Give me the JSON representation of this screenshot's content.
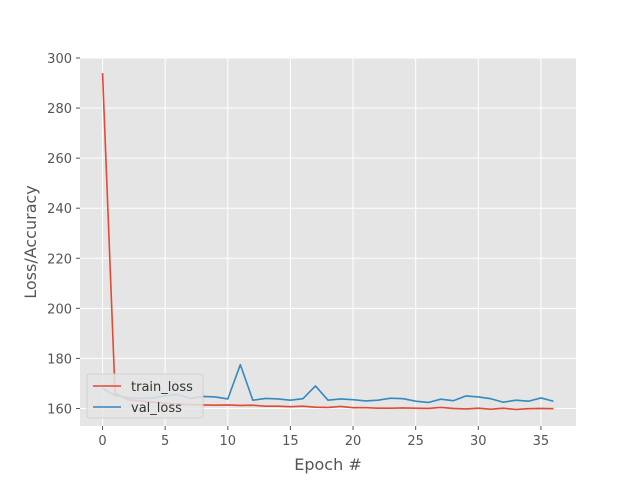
{
  "chart_data": {
    "type": "line",
    "title": "",
    "xlabel": "Epoch #",
    "ylabel": "Loss/Accuracy",
    "xlim": [
      -1.8,
      37.8
    ],
    "ylim": [
      153,
      300
    ],
    "xticks": [
      0,
      5,
      10,
      15,
      20,
      25,
      30,
      35
    ],
    "yticks": [
      160,
      180,
      200,
      220,
      240,
      260,
      280,
      300
    ],
    "grid": true,
    "legend_position": "lower-left",
    "x": [
      0,
      1,
      2,
      3,
      4,
      5,
      6,
      7,
      8,
      9,
      10,
      11,
      12,
      13,
      14,
      15,
      16,
      17,
      18,
      19,
      20,
      21,
      22,
      23,
      24,
      25,
      26,
      27,
      28,
      29,
      30,
      31,
      32,
      33,
      34,
      35,
      36
    ],
    "series": [
      {
        "name": "train_loss",
        "color": "#E24A33",
        "values": [
          294,
          166,
          163.5,
          163,
          162.5,
          162,
          161.8,
          161.5,
          161.4,
          161.3,
          161.4,
          161.2,
          161.3,
          160.9,
          160.9,
          160.7,
          160.9,
          160.5,
          160.4,
          160.8,
          160.3,
          160.3,
          160.1,
          160.1,
          160.2,
          160.1,
          160.0,
          160.4,
          160.0,
          159.8,
          160.1,
          159.7,
          160.1,
          159.6,
          159.9,
          160.0,
          159.9
        ]
      },
      {
        "name": "val_loss",
        "color": "#348ABD",
        "values": [
          168,
          165.2,
          164.3,
          164.0,
          164.2,
          165.0,
          165.6,
          164.0,
          164.8,
          164.6,
          163.8,
          177.5,
          163.3,
          164.0,
          163.8,
          163.3,
          163.9,
          169.0,
          163.3,
          163.8,
          163.5,
          163.0,
          163.3,
          164.1,
          163.9,
          162.9,
          162.4,
          163.7,
          163.1,
          165.0,
          164.6,
          163.9,
          162.5,
          163.3,
          162.9,
          164.2,
          162.9
        ]
      }
    ]
  }
}
